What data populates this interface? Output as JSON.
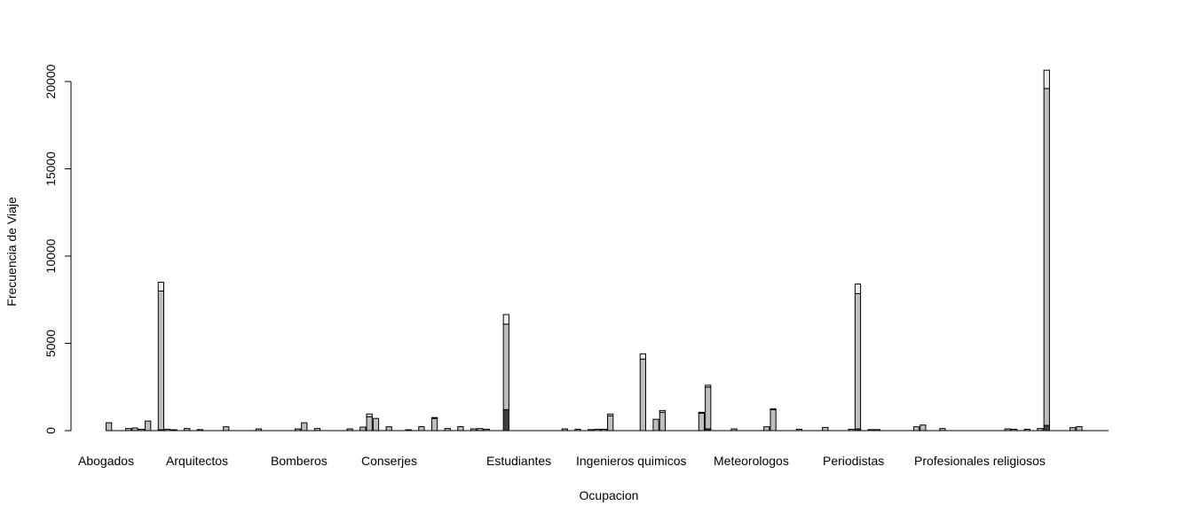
{
  "chart_data": {
    "type": "bar",
    "stacked": true,
    "xlabel": "Ocupacion",
    "ylabel": "Frecuencia de Viaje",
    "ylim": [
      0,
      21000
    ],
    "yticks": [
      0,
      5000,
      10000,
      15000,
      20000
    ],
    "category_labels": [
      "Abogados",
      "Arquitectos",
      "Bomberos",
      "Conserjes",
      "Estudiantes",
      "Ingenieros quimicos",
      "Meteorologos",
      "Periodistas",
      "Profesionales religiosos"
    ],
    "colors": {
      "bottom": "#404040",
      "middle": "#bebebe",
      "top": "#eeeeee",
      "outline": "#000000"
    },
    "bars": [
      [
        0,
        450,
        0
      ],
      [
        0,
        0,
        0
      ],
      [
        0,
        0,
        0
      ],
      [
        0,
        120,
        0
      ],
      [
        0,
        150,
        0
      ],
      [
        0,
        80,
        0
      ],
      [
        0,
        550,
        0
      ],
      [
        0,
        0,
        0
      ],
      [
        50,
        7950,
        500
      ],
      [
        0,
        80,
        0
      ],
      [
        0,
        50,
        0
      ],
      [
        0,
        0,
        0
      ],
      [
        0,
        120,
        0
      ],
      [
        0,
        0,
        0
      ],
      [
        0,
        60,
        0
      ],
      [
        0,
        0,
        0
      ],
      [
        0,
        0,
        0
      ],
      [
        0,
        0,
        0
      ],
      [
        0,
        220,
        0
      ],
      [
        0,
        0,
        0
      ],
      [
        0,
        0,
        0
      ],
      [
        0,
        0,
        0
      ],
      [
        0,
        0,
        0
      ],
      [
        0,
        100,
        0
      ],
      [
        0,
        0,
        0
      ],
      [
        0,
        0,
        0
      ],
      [
        0,
        0,
        0
      ],
      [
        0,
        0,
        0
      ],
      [
        0,
        0,
        0
      ],
      [
        0,
        100,
        0
      ],
      [
        0,
        450,
        0
      ],
      [
        0,
        0,
        0
      ],
      [
        0,
        120,
        0
      ],
      [
        0,
        0,
        0
      ],
      [
        0,
        0,
        0
      ],
      [
        0,
        0,
        0
      ],
      [
        0,
        0,
        0
      ],
      [
        0,
        100,
        0
      ],
      [
        0,
        0,
        0
      ],
      [
        0,
        200,
        0
      ],
      [
        0,
        800,
        150
      ],
      [
        0,
        700,
        0
      ],
      [
        0,
        0,
        0
      ],
      [
        0,
        220,
        0
      ],
      [
        0,
        0,
        0
      ],
      [
        0,
        0,
        0
      ],
      [
        0,
        50,
        0
      ],
      [
        0,
        0,
        0
      ],
      [
        0,
        230,
        0
      ],
      [
        0,
        0,
        0
      ],
      [
        0,
        700,
        50
      ],
      [
        0,
        0,
        0
      ],
      [
        0,
        120,
        0
      ],
      [
        0,
        0,
        0
      ],
      [
        0,
        230,
        0
      ],
      [
        0,
        0,
        0
      ],
      [
        0,
        100,
        0
      ],
      [
        0,
        120,
        0
      ],
      [
        0,
        80,
        0
      ],
      [
        0,
        0,
        0
      ],
      [
        0,
        0,
        0
      ],
      [
        1200,
        4900,
        550
      ],
      [
        0,
        0,
        0
      ],
      [
        0,
        0,
        0
      ],
      [
        0,
        0,
        0
      ],
      [
        0,
        0,
        0
      ],
      [
        0,
        0,
        0
      ],
      [
        0,
        0,
        0
      ],
      [
        0,
        0,
        0
      ],
      [
        0,
        0,
        0
      ],
      [
        0,
        100,
        0
      ],
      [
        0,
        0,
        0
      ],
      [
        0,
        80,
        0
      ],
      [
        0,
        0,
        0
      ],
      [
        0,
        60,
        0
      ],
      [
        0,
        80,
        0
      ],
      [
        0,
        80,
        0
      ],
      [
        0,
        850,
        100
      ],
      [
        0,
        0,
        0
      ],
      [
        0,
        0,
        0
      ],
      [
        0,
        0,
        0
      ],
      [
        0,
        0,
        0
      ],
      [
        0,
        4100,
        300
      ],
      [
        0,
        0,
        0
      ],
      [
        0,
        650,
        0
      ],
      [
        0,
        1050,
        100
      ],
      [
        0,
        0,
        0
      ],
      [
        0,
        0,
        0
      ],
      [
        0,
        0,
        0
      ],
      [
        0,
        0,
        0
      ],
      [
        0,
        0,
        0
      ],
      [
        0,
        1000,
        50
      ],
      [
        100,
        2400,
        100
      ],
      [
        0,
        0,
        0
      ],
      [
        0,
        0,
        0
      ],
      [
        0,
        0,
        0
      ],
      [
        0,
        100,
        0
      ],
      [
        0,
        0,
        0
      ],
      [
        0,
        0,
        0
      ],
      [
        0,
        0,
        0
      ],
      [
        0,
        0,
        0
      ],
      [
        0,
        220,
        0
      ],
      [
        0,
        1200,
        50
      ],
      [
        0,
        0,
        0
      ],
      [
        0,
        0,
        0
      ],
      [
        0,
        0,
        0
      ],
      [
        0,
        80,
        0
      ],
      [
        0,
        0,
        0
      ],
      [
        0,
        0,
        0
      ],
      [
        0,
        0,
        0
      ],
      [
        0,
        180,
        0
      ],
      [
        0,
        0,
        0
      ],
      [
        0,
        0,
        0
      ],
      [
        0,
        0,
        0
      ],
      [
        0,
        80,
        0
      ],
      [
        100,
        7750,
        550
      ],
      [
        0,
        0,
        0
      ],
      [
        0,
        60,
        0
      ],
      [
        0,
        60,
        0
      ],
      [
        0,
        0,
        0
      ],
      [
        0,
        0,
        0
      ],
      [
        0,
        0,
        0
      ],
      [
        0,
        0,
        0
      ],
      [
        0,
        0,
        0
      ],
      [
        0,
        220,
        0
      ],
      [
        0,
        320,
        0
      ],
      [
        0,
        0,
        0
      ],
      [
        0,
        0,
        0
      ],
      [
        0,
        120,
        0
      ],
      [
        0,
        0,
        0
      ],
      [
        0,
        0,
        0
      ],
      [
        0,
        0,
        0
      ],
      [
        0,
        0,
        0
      ],
      [
        0,
        0,
        0
      ],
      [
        0,
        0,
        0
      ],
      [
        0,
        0,
        0
      ],
      [
        0,
        0,
        0
      ],
      [
        0,
        0,
        0
      ],
      [
        0,
        100,
        0
      ],
      [
        0,
        80,
        0
      ],
      [
        0,
        0,
        0
      ],
      [
        0,
        80,
        0
      ],
      [
        0,
        0,
        0
      ],
      [
        0,
        120,
        0
      ],
      [
        300,
        19300,
        1050
      ],
      [
        0,
        0,
        0
      ],
      [
        0,
        0,
        0
      ],
      [
        0,
        0,
        0
      ],
      [
        0,
        170,
        0
      ],
      [
        0,
        230,
        0
      ],
      [
        0,
        0,
        0
      ],
      [
        0,
        0,
        0
      ],
      [
        0,
        0,
        0
      ],
      [
        0,
        0,
        0
      ]
    ]
  }
}
